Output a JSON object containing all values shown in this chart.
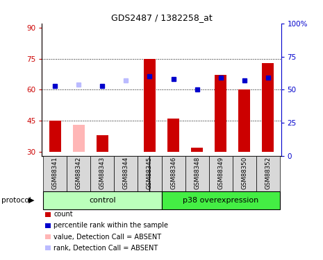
{
  "title": "GDS2487 / 1382258_at",
  "samples": [
    "GSM88341",
    "GSM88342",
    "GSM88343",
    "GSM88344",
    "GSM88345",
    "GSM88346",
    "GSM88348",
    "GSM88349",
    "GSM88350",
    "GSM88352"
  ],
  "ylim_left": [
    28,
    92
  ],
  "ylim_right": [
    0,
    100
  ],
  "yticks_left": [
    30,
    45,
    60,
    75,
    90
  ],
  "yticks_right": [
    0,
    25,
    50,
    75,
    100
  ],
  "ytick_labels_right": [
    "0",
    "25",
    "50",
    "75",
    "100%"
  ],
  "baseline": 30,
  "bar_values": [
    45,
    43,
    38,
    30,
    75,
    46,
    32,
    67,
    60,
    73
  ],
  "bar_absent": [
    false,
    true,
    false,
    true,
    false,
    false,
    false,
    false,
    false,
    false
  ],
  "bar_color_present": "#CC0000",
  "bar_color_absent": "#FFB6B6",
  "rank_values": [
    53,
    54,
    53,
    57,
    60,
    58,
    50,
    59,
    57,
    59
  ],
  "rank_absent": [
    false,
    true,
    false,
    true,
    false,
    false,
    false,
    false,
    false,
    false
  ],
  "rank_color_present": "#0000CC",
  "rank_color_absent": "#BBBBFF",
  "dotted_lines": [
    45,
    60,
    75
  ],
  "legend_items": [
    {
      "color": "#CC0000",
      "label": "count"
    },
    {
      "color": "#0000CC",
      "label": "percentile rank within the sample"
    },
    {
      "color": "#FFB6B6",
      "label": "value, Detection Call = ABSENT"
    },
    {
      "color": "#BBBBFF",
      "label": "rank, Detection Call = ABSENT"
    }
  ],
  "protocol_label": "protocol",
  "control_color": "#BBFFBB",
  "p38_color": "#44EE44",
  "group_separator": 4.5,
  "control_label": "control",
  "p38_label": "p38 overexpression"
}
